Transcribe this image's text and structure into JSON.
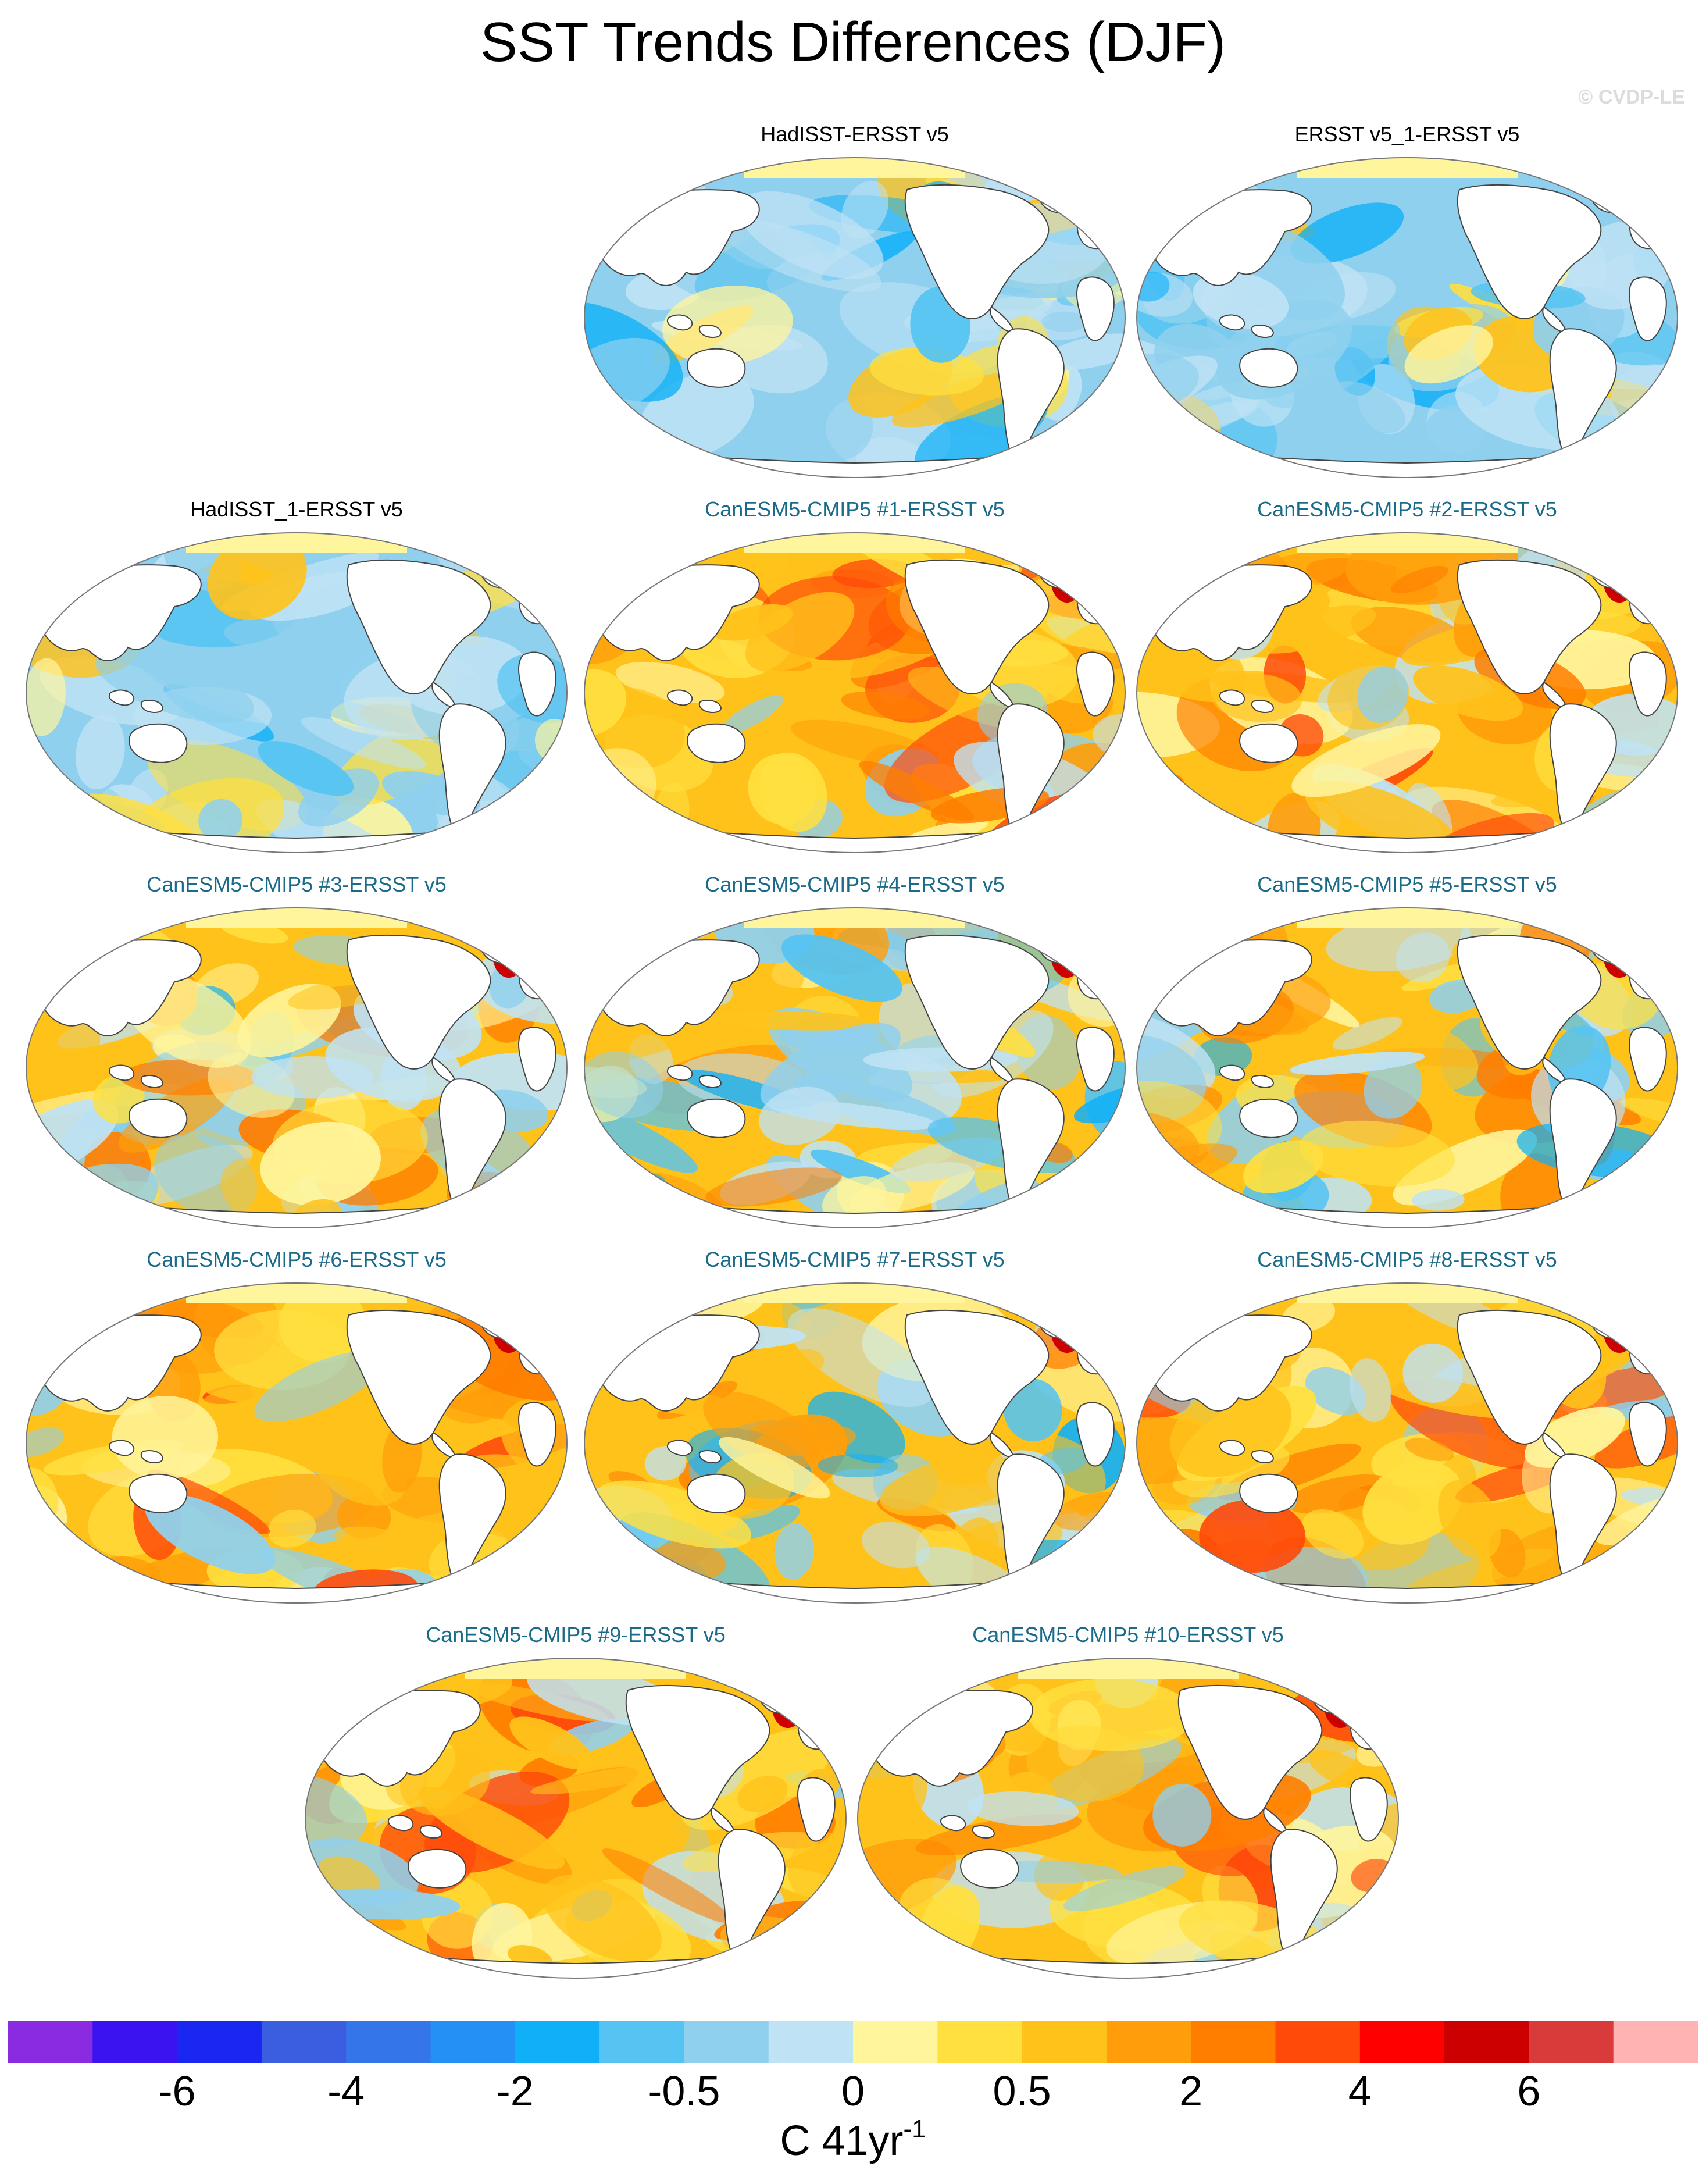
{
  "chart_data": {
    "type": "heatmap",
    "title": "SST Trends Differences (DJF)",
    "credit": "© CVDP-LE",
    "projection": "global robinson map",
    "panels": [
      {
        "title": "HadISST-ERSST v5",
        "kind": "obs",
        "pattern": "mostly-cool"
      },
      {
        "title": "ERSST v5_1-ERSST v5",
        "kind": "obs",
        "pattern": "mostly-cool"
      },
      {
        "title": "HadISST_1-ERSST v5",
        "kind": "obs",
        "pattern": "mostly-cool"
      },
      {
        "title": "CanESM5-CMIP5 #1-ERSST v5",
        "kind": "model",
        "pattern": "warm"
      },
      {
        "title": "CanESM5-CMIP5 #2-ERSST v5",
        "kind": "model",
        "pattern": "warm"
      },
      {
        "title": "CanESM5-CMIP5 #3-ERSST v5",
        "kind": "model",
        "pattern": "mixed"
      },
      {
        "title": "CanESM5-CMIP5 #4-ERSST v5",
        "kind": "model",
        "pattern": "mixed"
      },
      {
        "title": "CanESM5-CMIP5 #5-ERSST v5",
        "kind": "model",
        "pattern": "mixed"
      },
      {
        "title": "CanESM5-CMIP5 #6-ERSST v5",
        "kind": "model",
        "pattern": "warm"
      },
      {
        "title": "CanESM5-CMIP5 #7-ERSST v5",
        "kind": "model",
        "pattern": "mixed"
      },
      {
        "title": "CanESM5-CMIP5 #8-ERSST v5",
        "kind": "model",
        "pattern": "warm"
      },
      {
        "title": "CanESM5-CMIP5 #9-ERSST v5",
        "kind": "model",
        "pattern": "warm"
      },
      {
        "title": "CanESM5-CMIP5 #10-ERSST v5",
        "kind": "model",
        "pattern": "warm"
      }
    ],
    "colorbar": {
      "colors": [
        "#8a2be2",
        "#3b12f0",
        "#1a27f0",
        "#3b5ee0",
        "#3575ea",
        "#2490f5",
        "#10b0f8",
        "#55c4f2",
        "#8fd0ee",
        "#bfe2f4",
        "#fff59c",
        "#ffe040",
        "#ffc21a",
        "#ff9e0a",
        "#ff7e00",
        "#ff4a0a",
        "#ff0000",
        "#cc0000",
        "#d93a3a",
        "#ffb3b3"
      ],
      "tick_labels": [
        "-6",
        "-4",
        "-2",
        "-0.5",
        "0",
        "0.5",
        "2",
        "4",
        "6"
      ],
      "tick_boundaries": [
        2,
        4,
        6,
        8,
        10,
        12,
        14,
        16,
        18
      ],
      "label": "C 41yr",
      "label_exponent": "-1"
    }
  }
}
